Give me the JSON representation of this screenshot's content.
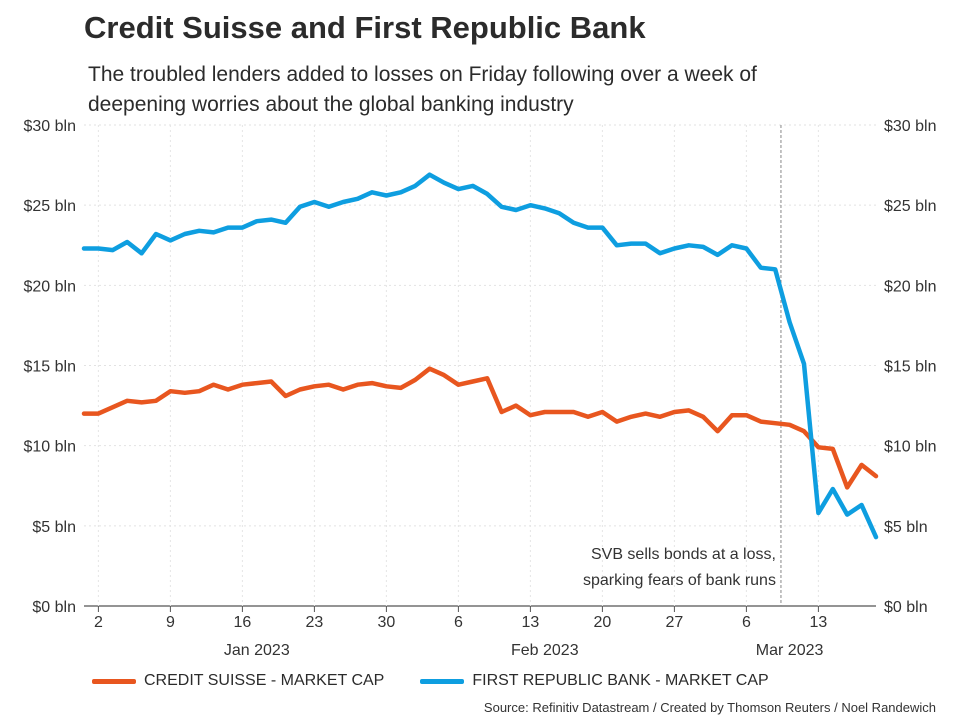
{
  "chart_data": {
    "type": "line",
    "title": "Credit Suisse and First Republic Bank",
    "subtitle": "The troubled lenders added to losses on Friday following over a week of deepening worries about the global banking industry",
    "y_ticks": [
      "$0 bln",
      "$5 bln",
      "$10 bln",
      "$15 bln",
      "$20 bln",
      "$25 bln",
      "$30 bln"
    ],
    "ylim": [
      0,
      30
    ],
    "x_index_range": [
      0,
      53
    ],
    "x_ticks": [
      {
        "label": "2",
        "index": 1
      },
      {
        "label": "9",
        "index": 6
      },
      {
        "label": "16",
        "index": 11
      },
      {
        "label": "23",
        "index": 16
      },
      {
        "label": "30",
        "index": 21
      },
      {
        "label": "6",
        "index": 26
      },
      {
        "label": "13",
        "index": 31
      },
      {
        "label": "20",
        "index": 36
      },
      {
        "label": "27",
        "index": 41
      },
      {
        "label": "6",
        "index": 46
      },
      {
        "label": "13",
        "index": 51
      }
    ],
    "month_labels": [
      {
        "label": "Jan 2023",
        "index": 12
      },
      {
        "label": "Feb 2023",
        "index": 32
      },
      {
        "label": "Mar 2023",
        "index": 49
      }
    ],
    "annotation": {
      "index": 48.4,
      "lines": [
        "SVB sells bonds at a loss,",
        "sparking fears of bank runs"
      ]
    },
    "series": [
      {
        "name": "CREDIT SUISSE - MARKET CAP",
        "color": "#e8561f",
        "values": [
          12.0,
          12.0,
          12.4,
          12.8,
          12.7,
          12.8,
          13.4,
          13.3,
          13.4,
          13.8,
          13.5,
          13.8,
          13.9,
          14.0,
          13.1,
          13.5,
          13.7,
          13.8,
          13.5,
          13.8,
          13.9,
          13.7,
          13.6,
          14.1,
          14.8,
          14.4,
          13.8,
          14.0,
          14.2,
          12.1,
          12.5,
          11.9,
          12.1,
          12.1,
          12.1,
          11.8,
          12.1,
          11.5,
          11.8,
          12.0,
          11.8,
          12.1,
          12.2,
          11.8,
          10.9,
          11.9,
          11.9,
          11.5,
          11.4,
          11.3,
          10.9,
          9.9,
          9.8,
          7.4,
          8.8,
          8.1
        ]
      },
      {
        "name": "FIRST REPUBLIC BANK - MARKET CAP",
        "color": "#0e9ee0",
        "values": [
          22.3,
          22.3,
          22.2,
          22.7,
          22.0,
          23.2,
          22.8,
          23.2,
          23.4,
          23.3,
          23.6,
          23.6,
          24.0,
          24.1,
          23.9,
          24.9,
          25.2,
          24.9,
          25.2,
          25.4,
          25.8,
          25.6,
          25.8,
          26.2,
          26.9,
          26.4,
          26.0,
          26.2,
          25.7,
          24.9,
          24.7,
          25.0,
          24.8,
          24.5,
          23.9,
          23.6,
          23.6,
          22.5,
          22.6,
          22.6,
          22.0,
          22.3,
          22.5,
          22.4,
          21.9,
          22.5,
          22.3,
          21.1,
          21.0,
          17.7,
          15.1,
          5.8,
          7.3,
          5.7,
          6.3,
          4.3
        ]
      }
    ]
  },
  "source": "Source: Refinitiv Datastream / Created by Thomson Reuters / Noel Randewich"
}
